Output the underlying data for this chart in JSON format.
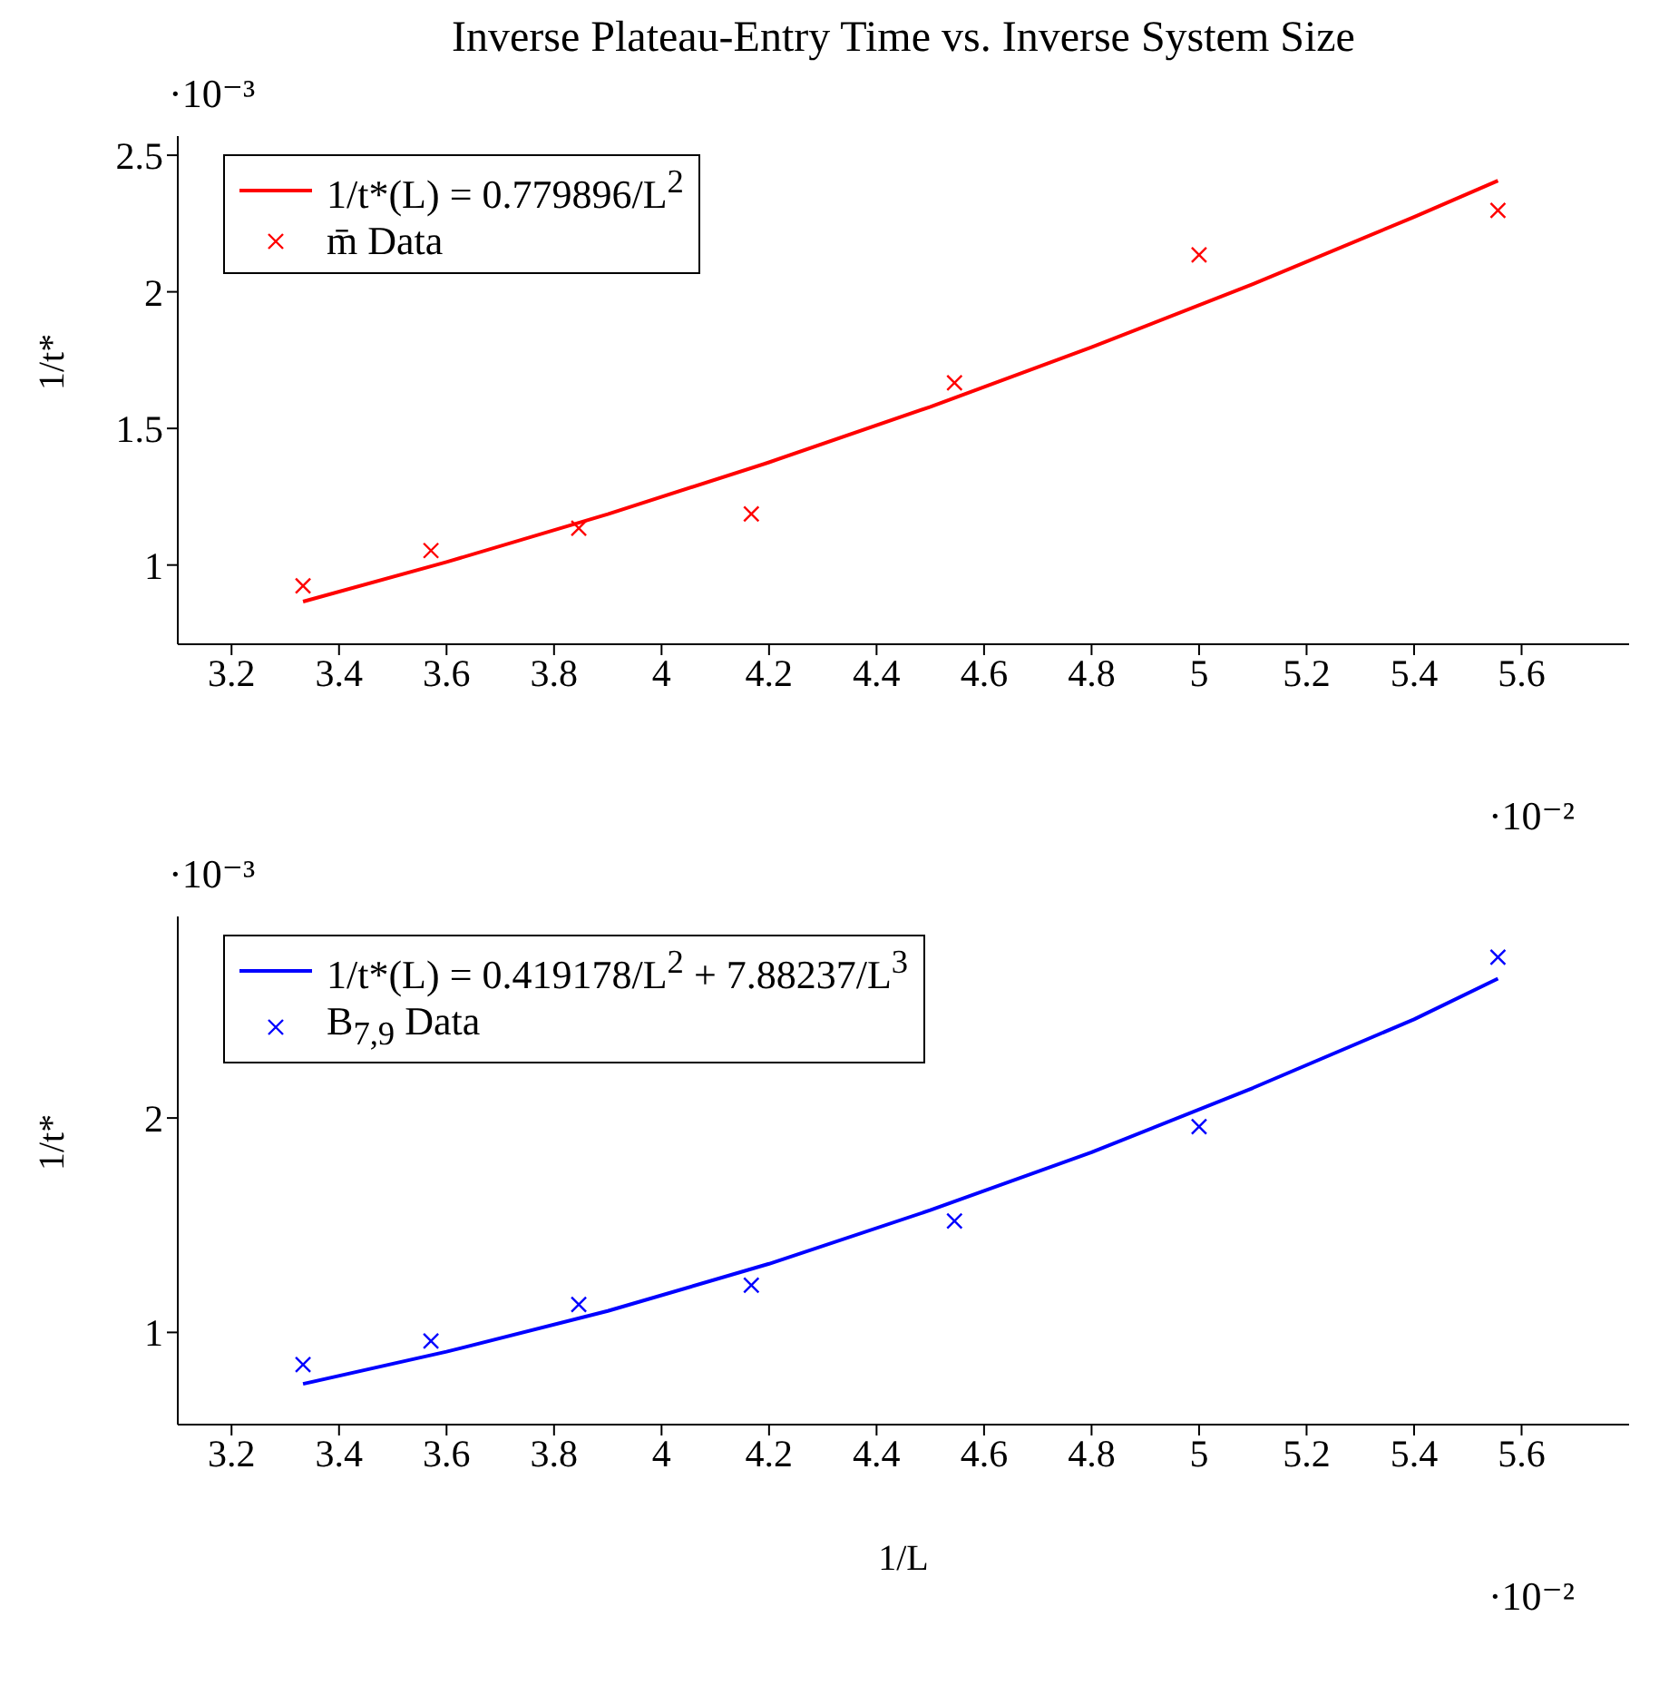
{
  "chart_data": [
    {
      "type": "scatter",
      "title": "Inverse Plateau-Entry Time vs. Inverse System Size",
      "ylabel": "1/t*",
      "annotations": [
        "·10⁻³",
        "·10⁻²"
      ],
      "xlim": [
        3.1,
        5.8
      ],
      "xticks": [
        3.2,
        3.4,
        3.6,
        3.8,
        4,
        4.2,
        4.4,
        4.6,
        4.8,
        5,
        5.2,
        5.4,
        5.6
      ],
      "ylim": [
        0.71,
        2.57
      ],
      "yticks": [
        1,
        1.5,
        2,
        2.5
      ],
      "legend": "top left",
      "series": [
        {
          "name": "1/t*(L) = 0.779896/L$^{2}$",
          "type": "line",
          "color": "#ff0000",
          "marker": "none",
          "line_style": "solid",
          "x": [
            3.333,
            3.6,
            3.9,
            4.2,
            4.5,
            4.8,
            5.1,
            5.4,
            5.556
          ],
          "values": [
            0.866,
            1.011,
            1.186,
            1.376,
            1.579,
            1.797,
            2.028,
            2.274,
            2.407
          ]
        },
        {
          "name": "m̄ Data",
          "color": "#ff0000",
          "marker": "cross",
          "x": [
            3.333,
            3.571,
            3.846,
            4.167,
            4.545,
            5.0,
            5.556
          ],
          "values": [
            0.924,
            1.053,
            1.135,
            1.187,
            1.667,
            2.135,
            2.298
          ]
        }
      ]
    },
    {
      "type": "scatter",
      "xlabel": "1/L",
      "ylabel": "1/t*",
      "annotations": [
        "·10⁻³",
        "·10⁻²"
      ],
      "xlim": [
        3.1,
        5.8
      ],
      "xticks": [
        3.2,
        3.4,
        3.6,
        3.8,
        4,
        4.2,
        4.4,
        4.6,
        4.8,
        5,
        5.2,
        5.4,
        5.6
      ],
      "ylim": [
        0.57,
        2.94
      ],
      "yticks": [
        1,
        2
      ],
      "legend": "top left",
      "series": [
        {
          "name": "1/t*(L) = 0.419178/L$^{2}$ + 7.88237/L$^{3}$",
          "type": "line",
          "color": "#0000ff",
          "marker": "none",
          "line_style": "solid",
          "x": [
            3.333,
            3.6,
            3.9,
            4.2,
            4.5,
            4.8,
            5.1,
            5.4,
            5.556
          ],
          "values": [
            0.76,
            0.91,
            1.1,
            1.32,
            1.57,
            1.84,
            2.14,
            2.46,
            2.65
          ]
        },
        {
          "name": "B$_{7,9}$ Data",
          "color": "#0000ff",
          "marker": "cross",
          "x": [
            3.333,
            3.571,
            3.846,
            4.167,
            4.545,
            5.0,
            5.556
          ],
          "values": [
            0.85,
            0.96,
            1.13,
            1.22,
            1.52,
            1.96,
            2.75
          ]
        }
      ]
    }
  ]
}
